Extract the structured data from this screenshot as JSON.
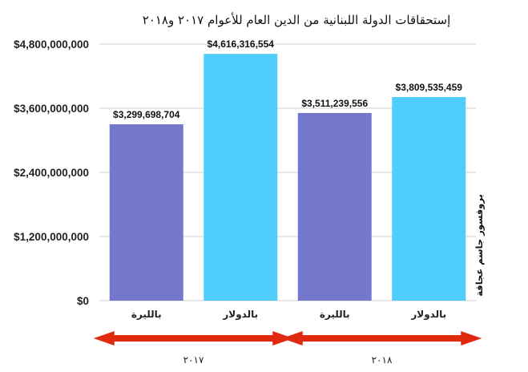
{
  "chart_data": {
    "type": "bar",
    "title": "إستحقاقات الدولة اللبنانية من الدين العام للأعوام ٢٠١٧ و٢٠١٨",
    "groups": [
      {
        "name": "٢٠١٧",
        "bars": [
          {
            "category": "بالليرة",
            "value": 3299698704,
            "label": "$3,299,698,704",
            "color": "#7378cc"
          },
          {
            "category": "بالدولار",
            "value": 4616316554,
            "label": "$4,616,316,554",
            "color": "#4fcdfb"
          }
        ]
      },
      {
        "name": "٢٠١٨",
        "bars": [
          {
            "category": "بالليرة",
            "value": 3511239556,
            "label": "$3,511,239,556",
            "color": "#7378cc"
          },
          {
            "category": "بالدولار",
            "value": 3809535459,
            "label": "$3,809,535,459",
            "color": "#4fcdfb"
          }
        ]
      }
    ],
    "yticks": [
      {
        "value": 0,
        "label": "$0"
      },
      {
        "value": 1200000000,
        "label": "$1,200,000,000"
      },
      {
        "value": 2400000000,
        "label": "$2,400,000,000"
      },
      {
        "value": 3600000000,
        "label": "$3,600,000,000"
      },
      {
        "value": 4800000000,
        "label": "$4,800,000,000"
      }
    ],
    "ylim": [
      0,
      4800000000
    ],
    "grid": true,
    "side_text": "بروفسور جاسم عجاقة",
    "arrow_color": "#e02a10"
  }
}
